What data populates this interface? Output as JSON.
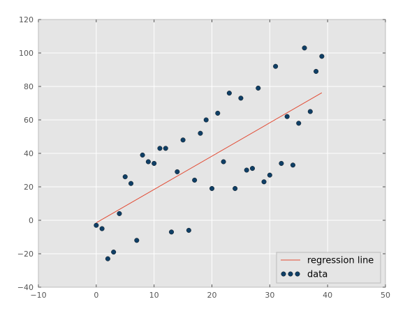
{
  "chart_data": {
    "type": "scatter",
    "title": "",
    "xlabel": "",
    "ylabel": "",
    "xlim": [
      -10,
      50
    ],
    "ylim": [
      -40,
      120
    ],
    "x_ticks": [
      -10,
      0,
      10,
      20,
      30,
      40,
      50
    ],
    "y_ticks": [
      -40,
      -20,
      0,
      20,
      40,
      60,
      80,
      100,
      120
    ],
    "grid": true,
    "background": "#e5e5e5",
    "legend_position": "lower-right",
    "series": [
      {
        "name": "data",
        "kind": "scatter",
        "color": "#0f3f66",
        "points": [
          [
            0,
            -3
          ],
          [
            1,
            -5
          ],
          [
            2,
            -23
          ],
          [
            3,
            -19
          ],
          [
            4,
            4
          ],
          [
            5,
            26
          ],
          [
            6,
            22
          ],
          [
            7,
            -12
          ],
          [
            8,
            39
          ],
          [
            9,
            35
          ],
          [
            10,
            34
          ],
          [
            11,
            43
          ],
          [
            12,
            43
          ],
          [
            13,
            -7
          ],
          [
            14,
            29
          ],
          [
            15,
            48
          ],
          [
            16,
            -6
          ],
          [
            17,
            24
          ],
          [
            18,
            52
          ],
          [
            19,
            60
          ],
          [
            20,
            19
          ],
          [
            21,
            64
          ],
          [
            22,
            35
          ],
          [
            23,
            76
          ],
          [
            24,
            19
          ],
          [
            25,
            73
          ],
          [
            26,
            30
          ],
          [
            27,
            31
          ],
          [
            28,
            79
          ],
          [
            29,
            23
          ],
          [
            30,
            27
          ],
          [
            31,
            92
          ],
          [
            32,
            34
          ],
          [
            33,
            62
          ],
          [
            34,
            33
          ],
          [
            35,
            58
          ],
          [
            36,
            103
          ],
          [
            37,
            65
          ],
          [
            38,
            89
          ],
          [
            39,
            98
          ]
        ]
      },
      {
        "name": "regression line",
        "kind": "line",
        "color": "#e24a33",
        "points": [
          [
            0,
            -1.5
          ],
          [
            39,
            76.2
          ]
        ]
      }
    ]
  }
}
